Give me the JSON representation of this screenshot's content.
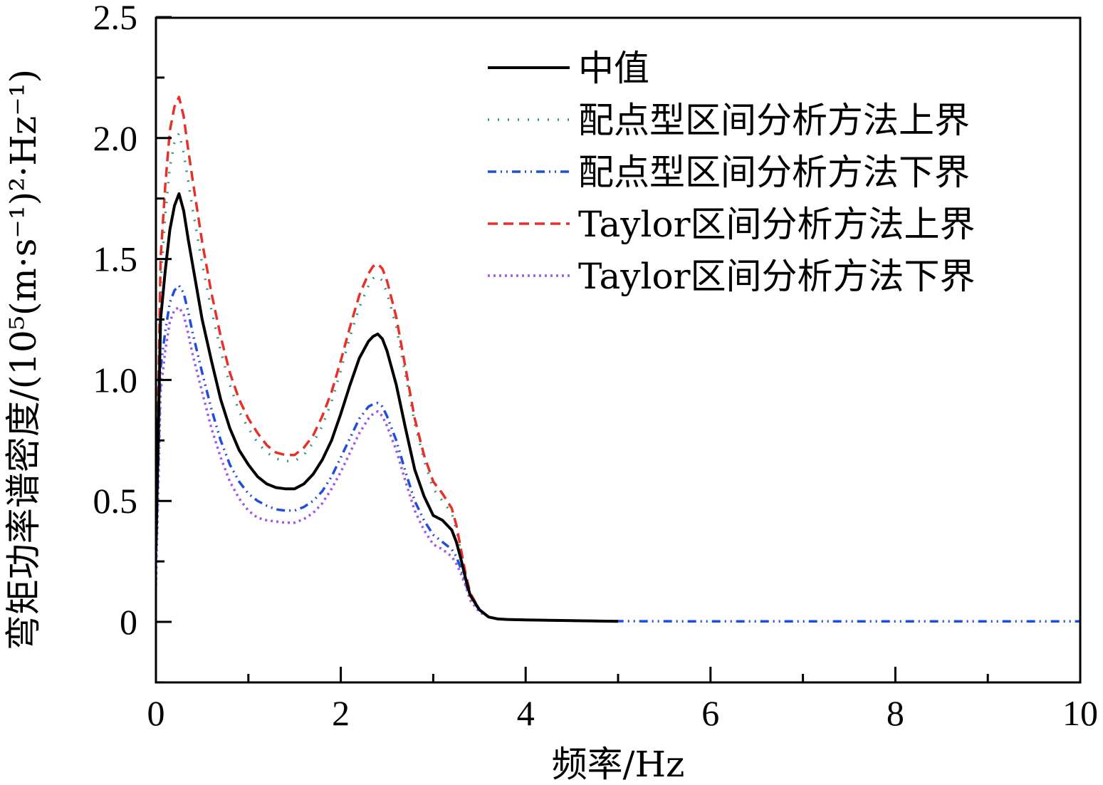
{
  "chart_data": {
    "type": "line",
    "xlabel": "频率/Hz",
    "ylabel": "弯矩功率谱密度/(10⁵(m·s⁻¹)²·Hz⁻¹)",
    "xlim": [
      0,
      10
    ],
    "ylim": [
      -0.25,
      2.5
    ],
    "xticks": [
      0,
      2,
      4,
      6,
      8,
      10
    ],
    "xtick_labels": [
      "0",
      "2",
      "4",
      "6",
      "8",
      "10"
    ],
    "yticks": [
      0,
      0.5,
      1.0,
      1.5,
      2.0,
      2.5
    ],
    "ytick_labels": [
      "0",
      "0.5",
      "1.0",
      "1.5",
      "2.0",
      "2.5"
    ],
    "legend_position": "top-right",
    "grid": false,
    "series": [
      {
        "name": "中值",
        "color": "#000000",
        "dash": "solid",
        "x": [
          0,
          0.05,
          0.1,
          0.15,
          0.2,
          0.25,
          0.3,
          0.35,
          0.4,
          0.5,
          0.6,
          0.7,
          0.8,
          0.9,
          1.0,
          1.1,
          1.2,
          1.3,
          1.4,
          1.5,
          1.6,
          1.7,
          1.8,
          1.9,
          2.0,
          2.1,
          2.2,
          2.3,
          2.35,
          2.4,
          2.45,
          2.5,
          2.6,
          2.7,
          2.8,
          2.9,
          3.0,
          3.1,
          3.2,
          3.25,
          3.3,
          3.35,
          3.4,
          3.5,
          3.6,
          3.7,
          3.8,
          4.0,
          4.5,
          5.0
        ],
        "values": [
          0.3,
          1.25,
          1.45,
          1.62,
          1.72,
          1.77,
          1.7,
          1.58,
          1.47,
          1.25,
          1.08,
          0.92,
          0.8,
          0.71,
          0.65,
          0.6,
          0.57,
          0.555,
          0.55,
          0.55,
          0.57,
          0.61,
          0.67,
          0.75,
          0.86,
          0.98,
          1.09,
          1.16,
          1.18,
          1.19,
          1.17,
          1.12,
          0.98,
          0.8,
          0.63,
          0.52,
          0.44,
          0.42,
          0.38,
          0.33,
          0.26,
          0.18,
          0.11,
          0.05,
          0.02,
          0.012,
          0.01,
          0.008,
          0.005,
          0.002
        ]
      },
      {
        "name": "配点型区间分析方法上界",
        "color": "#2e9a7a",
        "dash": "2 12",
        "x": [
          0,
          0.05,
          0.1,
          0.15,
          0.2,
          0.25,
          0.3,
          0.35,
          0.4,
          0.5,
          0.6,
          0.7,
          0.8,
          0.9,
          1.0,
          1.1,
          1.2,
          1.3,
          1.4,
          1.5,
          1.6,
          1.7,
          1.8,
          1.9,
          2.0,
          2.1,
          2.2,
          2.3,
          2.35,
          2.4,
          2.45,
          2.5,
          2.6,
          2.7,
          2.8,
          2.9,
          3.0,
          3.1,
          3.2,
          3.25,
          3.3,
          3.35,
          3.4,
          3.5,
          3.6,
          3.7,
          3.8,
          4.0,
          4.5,
          5.0
        ],
        "values": [
          0.33,
          1.4,
          1.68,
          1.88,
          1.98,
          2.02,
          1.94,
          1.82,
          1.7,
          1.48,
          1.29,
          1.12,
          0.98,
          0.87,
          0.8,
          0.74,
          0.7,
          0.675,
          0.665,
          0.665,
          0.69,
          0.74,
          0.81,
          0.91,
          1.04,
          1.18,
          1.3,
          1.39,
          1.42,
          1.43,
          1.41,
          1.36,
          1.22,
          1.02,
          0.82,
          0.67,
          0.55,
          0.5,
          0.45,
          0.38,
          0.29,
          0.19,
          0.11,
          0.05,
          0.02,
          0.012,
          0.01,
          0.008,
          0.005,
          0.002
        ]
      },
      {
        "name": "配点型区间分析方法下界",
        "color": "#1f4fd8",
        "dash": "12 6 2 6 2 6",
        "x": [
          0,
          0.05,
          0.1,
          0.15,
          0.2,
          0.25,
          0.3,
          0.35,
          0.4,
          0.5,
          0.6,
          0.7,
          0.8,
          0.9,
          1.0,
          1.1,
          1.2,
          1.3,
          1.4,
          1.5,
          1.6,
          1.7,
          1.8,
          1.9,
          2.0,
          2.1,
          2.2,
          2.3,
          2.35,
          2.4,
          2.45,
          2.5,
          2.6,
          2.7,
          2.8,
          2.9,
          3.0,
          3.1,
          3.2,
          3.25,
          3.3,
          3.35,
          3.4,
          3.5,
          3.6,
          3.7,
          3.8,
          4.0,
          4.5,
          5.0,
          6.0,
          7.0,
          8.0,
          9.0,
          10.0
        ],
        "values": [
          0.25,
          1.05,
          1.2,
          1.32,
          1.37,
          1.39,
          1.36,
          1.28,
          1.19,
          1.03,
          0.88,
          0.75,
          0.65,
          0.58,
          0.53,
          0.5,
          0.48,
          0.465,
          0.46,
          0.46,
          0.475,
          0.5,
          0.54,
          0.6,
          0.68,
          0.76,
          0.84,
          0.89,
          0.9,
          0.905,
          0.89,
          0.85,
          0.75,
          0.62,
          0.5,
          0.42,
          0.36,
          0.33,
          0.3,
          0.27,
          0.22,
          0.16,
          0.1,
          0.05,
          0.02,
          0.012,
          0.01,
          0.008,
          0.005,
          0.003,
          0.002,
          0.002,
          0.002,
          0.002,
          0.002
        ]
      },
      {
        "name": "Taylor区间分析方法上界",
        "color": "#e8302a",
        "dash": "14 8",
        "x": [
          0,
          0.05,
          0.1,
          0.15,
          0.2,
          0.25,
          0.3,
          0.35,
          0.4,
          0.5,
          0.6,
          0.7,
          0.8,
          0.9,
          1.0,
          1.1,
          1.2,
          1.3,
          1.4,
          1.5,
          1.6,
          1.7,
          1.8,
          1.9,
          2.0,
          2.1,
          2.2,
          2.3,
          2.35,
          2.4,
          2.45,
          2.5,
          2.6,
          2.7,
          2.8,
          2.9,
          3.0,
          3.1,
          3.2,
          3.25,
          3.3,
          3.35,
          3.4,
          3.5,
          3.6,
          3.7,
          3.8,
          4.0,
          4.5,
          5.0
        ],
        "values": [
          0.35,
          1.5,
          1.8,
          2.03,
          2.13,
          2.17,
          2.09,
          1.95,
          1.82,
          1.57,
          1.36,
          1.18,
          1.03,
          0.92,
          0.84,
          0.78,
          0.73,
          0.7,
          0.69,
          0.69,
          0.72,
          0.77,
          0.85,
          0.95,
          1.08,
          1.22,
          1.35,
          1.44,
          1.47,
          1.48,
          1.46,
          1.41,
          1.26,
          1.05,
          0.84,
          0.69,
          0.58,
          0.53,
          0.47,
          0.4,
          0.3,
          0.2,
          0.12,
          0.05,
          0.02,
          0.012,
          0.01,
          0.008,
          0.005,
          0.002
        ]
      },
      {
        "name": "Taylor区间分析方法下界",
        "color": "#9b59f0",
        "dash": "3 5",
        "x": [
          0,
          0.05,
          0.1,
          0.15,
          0.2,
          0.25,
          0.3,
          0.35,
          0.4,
          0.5,
          0.6,
          0.7,
          0.8,
          0.9,
          1.0,
          1.1,
          1.2,
          1.3,
          1.4,
          1.5,
          1.6,
          1.7,
          1.8,
          1.9,
          2.0,
          2.1,
          2.2,
          2.3,
          2.35,
          2.4,
          2.45,
          2.5,
          2.6,
          2.7,
          2.8,
          2.9,
          3.0,
          3.1,
          3.2,
          3.25,
          3.3,
          3.35,
          3.4,
          3.5,
          3.6,
          3.7,
          3.8,
          4.0,
          4.5,
          5.0
        ],
        "values": [
          0.15,
          0.95,
          1.12,
          1.24,
          1.29,
          1.3,
          1.27,
          1.19,
          1.1,
          0.95,
          0.8,
          0.68,
          0.58,
          0.51,
          0.46,
          0.43,
          0.42,
          0.415,
          0.41,
          0.41,
          0.425,
          0.45,
          0.49,
          0.55,
          0.62,
          0.7,
          0.78,
          0.84,
          0.86,
          0.87,
          0.85,
          0.81,
          0.71,
          0.58,
          0.46,
          0.38,
          0.32,
          0.3,
          0.27,
          0.24,
          0.2,
          0.15,
          0.09,
          0.04,
          0.02,
          0.012,
          0.01,
          0.008,
          0.005,
          0.002
        ]
      }
    ]
  }
}
